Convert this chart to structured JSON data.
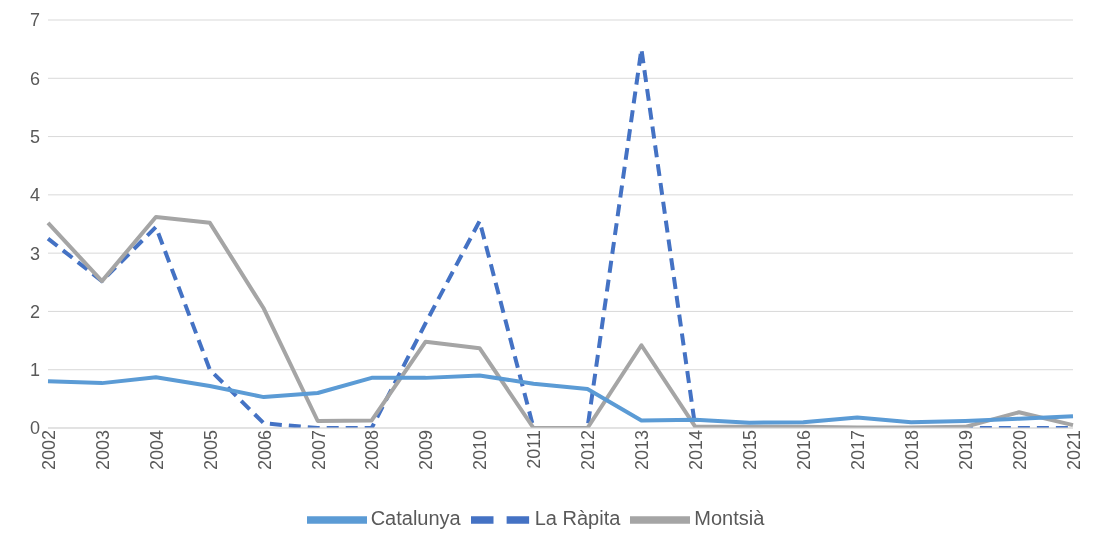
{
  "chart_data": {
    "type": "line",
    "categories": [
      "2002",
      "2003",
      "2004",
      "2005",
      "2006",
      "2007",
      "2008",
      "2009",
      "2010",
      "2011",
      "2012",
      "2013",
      "2014",
      "2015",
      "2016",
      "2017",
      "2018",
      "2019",
      "2020",
      "2021"
    ],
    "series": [
      {
        "name": "La Ràpita",
        "color": "#4472c4",
        "line_style": "dashed",
        "values": [
          3.25,
          2.52,
          3.45,
          1.0,
          0.08,
          0.0,
          0.0,
          1.8,
          3.55,
          0,
          0,
          6.5,
          0,
          0,
          0,
          0,
          0,
          0,
          0,
          0
        ]
      },
      {
        "name": "Montsià",
        "color": "#a5a5a5",
        "line_style": "solid",
        "values": [
          3.52,
          2.52,
          3.62,
          3.52,
          2.05,
          0.12,
          0.13,
          1.48,
          1.37,
          0,
          0,
          1.42,
          0.02,
          0.02,
          0.02,
          0.01,
          0.01,
          0.02,
          0.27,
          0.05
        ]
      },
      {
        "name": "Catalunya",
        "color": "#5b9bd5",
        "line_style": "solid",
        "values": [
          0.8,
          0.77,
          0.87,
          0.72,
          0.53,
          0.6,
          0.86,
          0.86,
          0.9,
          0.76,
          0.67,
          0.13,
          0.14,
          0.09,
          0.1,
          0.18,
          0.1,
          0.12,
          0.16,
          0.2
        ]
      }
    ],
    "ylim": [
      0,
      7
    ],
    "yticks": [
      0,
      1,
      2,
      3,
      4,
      5,
      6,
      7
    ],
    "grid": "y",
    "legend": "bottom",
    "marker": "none"
  }
}
